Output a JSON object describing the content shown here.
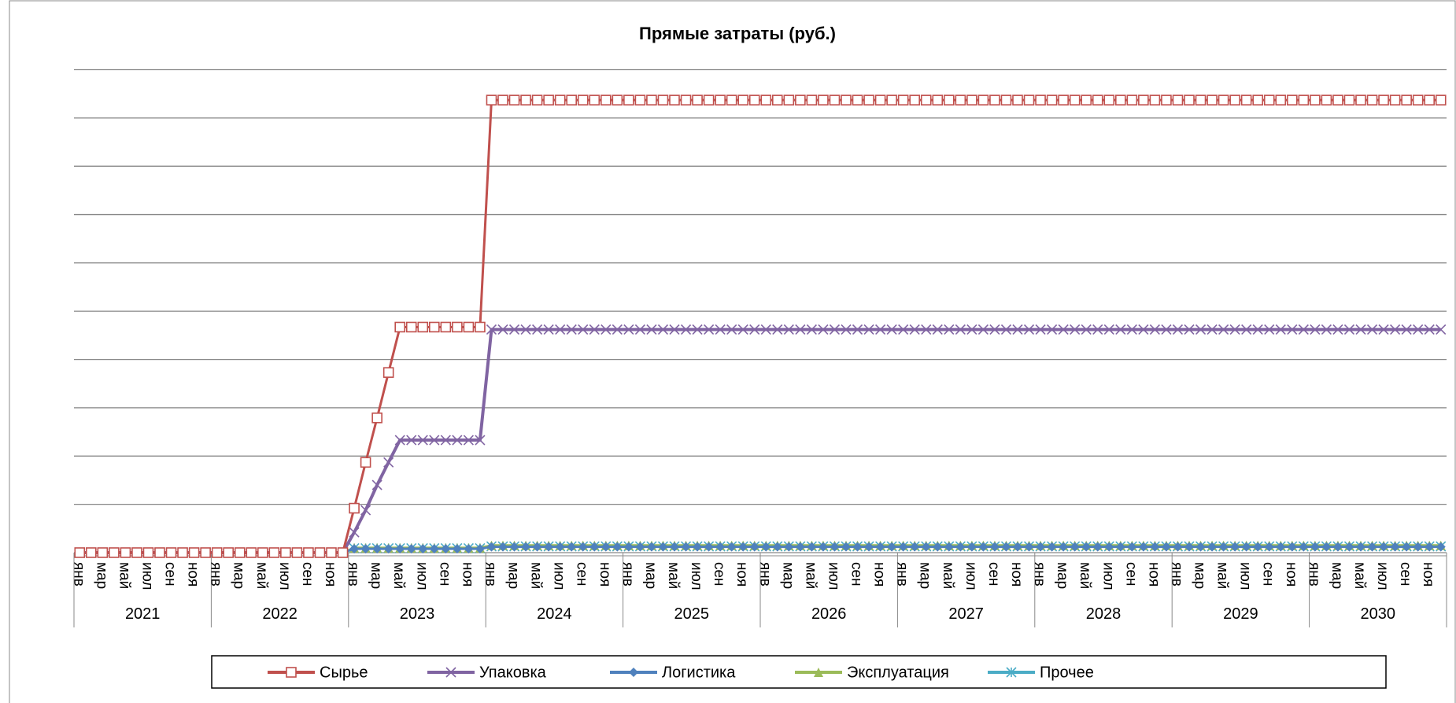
{
  "chart_data": {
    "type": "line",
    "title": "Прямые затраты (руб.)",
    "categories": [
      "янв",
      null,
      "мар",
      null,
      "май",
      null,
      "июл",
      null,
      "сен",
      null,
      "ноя",
      null,
      "янв",
      null,
      "мар",
      null,
      "май",
      null,
      "июл",
      null,
      "сен",
      null,
      "ноя",
      null,
      "янв",
      null,
      "мар",
      null,
      "май",
      null,
      "июл",
      null,
      "сен",
      null,
      "ноя",
      null,
      "янв",
      null,
      "мар",
      null,
      "май",
      null,
      "июл",
      null,
      "сен",
      null,
      "ноя",
      null,
      "янв",
      null,
      "мар",
      null,
      "май",
      null,
      "июл",
      null,
      "сен",
      null,
      "ноя",
      null,
      "янв",
      null,
      "мар",
      null,
      "май",
      null,
      "июл",
      null,
      "сен",
      null,
      "ноя",
      null,
      "янв",
      null,
      "мар",
      null,
      "май",
      null,
      "июл",
      null,
      "сен",
      null,
      "ноя",
      null,
      "янв",
      null,
      "мар",
      null,
      "май",
      null,
      "июл",
      null,
      "сен",
      null,
      "ноя",
      null,
      "янв",
      null,
      "мар",
      null,
      "май",
      null,
      "июл",
      null,
      "сен",
      null,
      "ноя",
      null,
      "янв",
      null,
      "мар",
      null,
      "май",
      null,
      "июл",
      null,
      "сен",
      null,
      "ноя",
      null
    ],
    "years": [
      "2021",
      "2022",
      "2023",
      "2024",
      "2025",
      "2026",
      "2027",
      "2028",
      "2029",
      "2030"
    ],
    "ylim": [
      0,
      10
    ],
    "yticks": [
      0,
      1,
      2,
      3,
      4,
      5,
      6,
      7,
      8,
      9,
      10
    ],
    "grid": true,
    "series": [
      {
        "name": "Сырье",
        "color": "#c0504d",
        "marker": "square",
        "values": [
          0,
          0,
          0,
          0,
          0,
          0,
          0,
          0,
          0,
          0,
          0,
          0,
          0,
          0,
          0,
          0,
          0,
          0,
          0,
          0,
          0,
          0,
          0,
          0,
          0.92,
          1.87,
          2.79,
          3.73,
          4.67,
          4.67,
          4.67,
          4.67,
          4.67,
          4.67,
          4.67,
          4.67,
          9.37,
          9.37,
          9.37,
          9.37,
          9.37,
          9.37,
          9.37,
          9.37,
          9.37,
          9.37,
          9.37,
          9.37,
          9.37,
          9.37,
          9.37,
          9.37,
          9.37,
          9.37,
          9.37,
          9.37,
          9.37,
          9.37,
          9.37,
          9.37,
          9.37,
          9.37,
          9.37,
          9.37,
          9.37,
          9.37,
          9.37,
          9.37,
          9.37,
          9.37,
          9.37,
          9.37,
          9.37,
          9.37,
          9.37,
          9.37,
          9.37,
          9.37,
          9.37,
          9.37,
          9.37,
          9.37,
          9.37,
          9.37,
          9.37,
          9.37,
          9.37,
          9.37,
          9.37,
          9.37,
          9.37,
          9.37,
          9.37,
          9.37,
          9.37,
          9.37,
          9.37,
          9.37,
          9.37,
          9.37,
          9.37,
          9.37,
          9.37,
          9.37,
          9.37,
          9.37,
          9.37,
          9.37,
          9.37,
          9.37,
          9.37,
          9.37,
          9.37,
          9.37,
          9.37,
          9.37,
          9.37,
          9.37,
          9.37,
          9.37
        ]
      },
      {
        "name": "Упаковка",
        "color": "#8064a2",
        "marker": "x",
        "values": [
          0,
          0,
          0,
          0,
          0,
          0,
          0,
          0,
          0,
          0,
          0,
          0,
          0,
          0,
          0,
          0,
          0,
          0,
          0,
          0,
          0,
          0,
          0,
          0,
          0.42,
          0.88,
          1.4,
          1.87,
          2.33,
          2.33,
          2.33,
          2.33,
          2.33,
          2.33,
          2.33,
          2.33,
          4.62,
          4.62,
          4.62,
          4.62,
          4.62,
          4.62,
          4.62,
          4.62,
          4.62,
          4.62,
          4.62,
          4.62,
          4.62,
          4.62,
          4.62,
          4.62,
          4.62,
          4.62,
          4.62,
          4.62,
          4.62,
          4.62,
          4.62,
          4.62,
          4.62,
          4.62,
          4.62,
          4.62,
          4.62,
          4.62,
          4.62,
          4.62,
          4.62,
          4.62,
          4.62,
          4.62,
          4.62,
          4.62,
          4.62,
          4.62,
          4.62,
          4.62,
          4.62,
          4.62,
          4.62,
          4.62,
          4.62,
          4.62,
          4.62,
          4.62,
          4.62,
          4.62,
          4.62,
          4.62,
          4.62,
          4.62,
          4.62,
          4.62,
          4.62,
          4.62,
          4.62,
          4.62,
          4.62,
          4.62,
          4.62,
          4.62,
          4.62,
          4.62,
          4.62,
          4.62,
          4.62,
          4.62,
          4.62,
          4.62,
          4.62,
          4.62,
          4.62,
          4.62,
          4.62,
          4.62,
          4.62,
          4.62,
          4.62,
          4.62
        ]
      },
      {
        "name": "Логистика",
        "color": "#4f81bd",
        "marker": "diamond",
        "values": [
          0,
          0,
          0,
          0,
          0,
          0,
          0,
          0,
          0,
          0,
          0,
          0,
          0,
          0,
          0,
          0,
          0,
          0,
          0,
          0,
          0,
          0,
          0,
          0,
          0.08,
          0.08,
          0.08,
          0.08,
          0.08,
          0.08,
          0.08,
          0.08,
          0.08,
          0.08,
          0.08,
          0.08,
          0.12,
          0.12,
          0.12,
          0.12,
          0.12,
          0.12,
          0.12,
          0.12,
          0.12,
          0.12,
          0.12,
          0.12,
          0.12,
          0.12,
          0.12,
          0.12,
          0.12,
          0.12,
          0.12,
          0.12,
          0.12,
          0.12,
          0.12,
          0.12,
          0.12,
          0.12,
          0.12,
          0.12,
          0.12,
          0.12,
          0.12,
          0.12,
          0.12,
          0.12,
          0.12,
          0.12,
          0.12,
          0.12,
          0.12,
          0.12,
          0.12,
          0.12,
          0.12,
          0.12,
          0.12,
          0.12,
          0.12,
          0.12,
          0.12,
          0.12,
          0.12,
          0.12,
          0.12,
          0.12,
          0.12,
          0.12,
          0.12,
          0.12,
          0.12,
          0.12,
          0.12,
          0.12,
          0.12,
          0.12,
          0.12,
          0.12,
          0.12,
          0.12,
          0.12,
          0.12,
          0.12,
          0.12,
          0.12,
          0.12,
          0.12,
          0.12,
          0.12,
          0.12,
          0.12,
          0.12,
          0.12,
          0.12,
          0.12,
          0.12
        ]
      },
      {
        "name": "Эксплуатация",
        "color": "#9bbb59",
        "marker": "triangle",
        "values": [
          0,
          0,
          0,
          0,
          0,
          0,
          0,
          0,
          0,
          0,
          0,
          0,
          0,
          0,
          0,
          0,
          0,
          0,
          0,
          0,
          0,
          0,
          0,
          0,
          0.1,
          0.1,
          0.1,
          0.1,
          0.1,
          0.1,
          0.1,
          0.1,
          0.1,
          0.1,
          0.1,
          0.1,
          0.15,
          0.15,
          0.15,
          0.15,
          0.15,
          0.15,
          0.15,
          0.15,
          0.15,
          0.15,
          0.15,
          0.15,
          0.15,
          0.15,
          0.15,
          0.15,
          0.15,
          0.15,
          0.15,
          0.15,
          0.15,
          0.15,
          0.15,
          0.15,
          0.15,
          0.15,
          0.15,
          0.15,
          0.15,
          0.15,
          0.15,
          0.15,
          0.15,
          0.15,
          0.15,
          0.15,
          0.15,
          0.15,
          0.15,
          0.15,
          0.15,
          0.15,
          0.15,
          0.15,
          0.15,
          0.15,
          0.15,
          0.15,
          0.15,
          0.15,
          0.15,
          0.15,
          0.15,
          0.15,
          0.15,
          0.15,
          0.15,
          0.15,
          0.15,
          0.15,
          0.15,
          0.15,
          0.15,
          0.15,
          0.15,
          0.15,
          0.15,
          0.15,
          0.15,
          0.15,
          0.15,
          0.15,
          0.15,
          0.15,
          0.15,
          0.15,
          0.15,
          0.15,
          0.15,
          0.15,
          0.15,
          0.15,
          0.15,
          0.15
        ]
      },
      {
        "name": "Прочее",
        "color": "#4bacc6",
        "marker": "star",
        "values": [
          0,
          0,
          0,
          0,
          0,
          0,
          0,
          0,
          0,
          0,
          0,
          0,
          0,
          0,
          0,
          0,
          0,
          0,
          0,
          0,
          0,
          0,
          0,
          0,
          0.09,
          0.09,
          0.09,
          0.09,
          0.09,
          0.09,
          0.09,
          0.09,
          0.09,
          0.09,
          0.09,
          0.09,
          0.13,
          0.13,
          0.13,
          0.13,
          0.13,
          0.13,
          0.13,
          0.13,
          0.13,
          0.13,
          0.13,
          0.13,
          0.13,
          0.13,
          0.13,
          0.13,
          0.13,
          0.13,
          0.13,
          0.13,
          0.13,
          0.13,
          0.13,
          0.13,
          0.13,
          0.13,
          0.13,
          0.13,
          0.13,
          0.13,
          0.13,
          0.13,
          0.13,
          0.13,
          0.13,
          0.13,
          0.13,
          0.13,
          0.13,
          0.13,
          0.13,
          0.13,
          0.13,
          0.13,
          0.13,
          0.13,
          0.13,
          0.13,
          0.13,
          0.13,
          0.13,
          0.13,
          0.13,
          0.13,
          0.13,
          0.13,
          0.13,
          0.13,
          0.13,
          0.13,
          0.13,
          0.13,
          0.13,
          0.13,
          0.13,
          0.13,
          0.13,
          0.13,
          0.13,
          0.13,
          0.13,
          0.13,
          0.13,
          0.13,
          0.13,
          0.13,
          0.13,
          0.13,
          0.13,
          0.13,
          0.13,
          0.13,
          0.13,
          0.13
        ]
      }
    ]
  }
}
